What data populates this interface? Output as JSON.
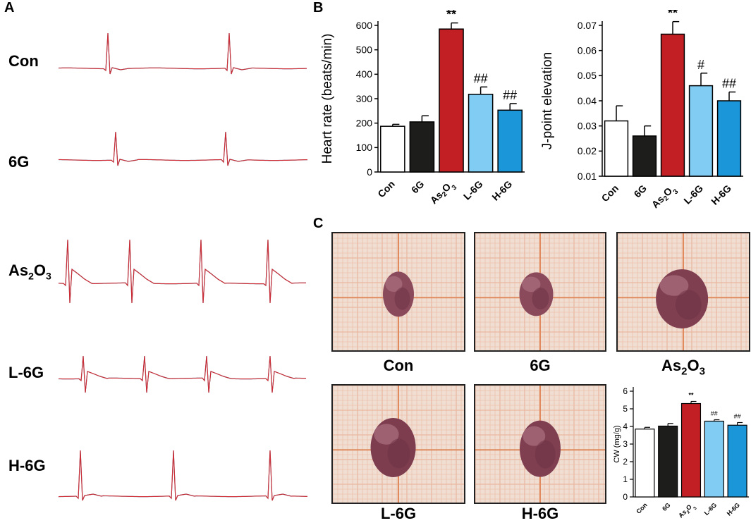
{
  "panels": {
    "a": "A",
    "b": "B",
    "c": "C"
  },
  "ecg": {
    "traces": [
      {
        "label": "Con",
        "label_sub": null
      },
      {
        "label": "6G",
        "label_sub": null
      },
      {
        "label": "As2O3",
        "label_parts": [
          "As",
          "2",
          "O",
          "3"
        ]
      },
      {
        "label": "L-6G",
        "label_sub": null
      },
      {
        "label": "H-6G",
        "label_sub": null
      }
    ],
    "colors": {
      "signal": "#e8262b",
      "baseline": "#4a4f6a"
    }
  },
  "chart_data": [
    {
      "type": "bar",
      "id": "heart-rate",
      "title": "",
      "xlabel": "",
      "ylabel": "Heart rate (beats/min)",
      "categories": [
        "Con",
        "6G",
        "As2O3",
        "L-6G",
        "H-6G"
      ],
      "category_parts": [
        [
          "Con"
        ],
        [
          "6G"
        ],
        [
          "As",
          "2",
          "O",
          "3"
        ],
        [
          "L-6G"
        ],
        [
          "H-6G"
        ]
      ],
      "values": [
        187,
        205,
        585,
        318,
        253
      ],
      "errors": [
        8,
        25,
        25,
        30,
        27
      ],
      "annotations": [
        "",
        "",
        "**",
        "##",
        "##"
      ],
      "colors": [
        "#ffffff",
        "#1d1d1b",
        "#c11f24",
        "#80ccf3",
        "#1b96d8"
      ],
      "ylim": [
        0,
        600
      ],
      "yticks": [
        "0",
        "100",
        "200",
        "300",
        "400",
        "500",
        "600"
      ]
    },
    {
      "type": "bar",
      "id": "j-point",
      "title": "",
      "xlabel": "",
      "ylabel": "J-point elevation",
      "categories": [
        "Con",
        "6G",
        "As2O3",
        "L-6G",
        "H-6G"
      ],
      "category_parts": [
        [
          "Con"
        ],
        [
          "6G"
        ],
        [
          "As",
          "2",
          "O",
          "3"
        ],
        [
          "L-6G"
        ],
        [
          "H-6G"
        ]
      ],
      "values": [
        0.032,
        0.026,
        0.0665,
        0.046,
        0.04
      ],
      "errors": [
        0.006,
        0.004,
        0.005,
        0.005,
        0.0035
      ],
      "annotations": [
        "",
        "",
        "**",
        "#",
        "##"
      ],
      "colors": [
        "#ffffff",
        "#1d1d1b",
        "#c11f24",
        "#80ccf3",
        "#1b96d8"
      ],
      "ylim": [
        0.01,
        0.07
      ],
      "yticks": [
        "0.01",
        "0.02",
        "0.03",
        "0.04",
        "0.05",
        "0.06",
        "0.07"
      ]
    },
    {
      "type": "bar",
      "id": "cw",
      "title": "",
      "xlabel": "",
      "ylabel": "CW (mg/g)",
      "categories": [
        "Con",
        "6G",
        "As2O3",
        "L-6G",
        "H-6G"
      ],
      "category_parts": [
        [
          "Con"
        ],
        [
          "6G"
        ],
        [
          "As",
          "2",
          "O",
          "3"
        ],
        [
          "L-6G"
        ],
        [
          "H-6G"
        ]
      ],
      "values": [
        3.85,
        4.02,
        5.3,
        4.3,
        4.07
      ],
      "errors": [
        0.1,
        0.15,
        0.12,
        0.08,
        0.15
      ],
      "annotations": [
        "",
        "",
        "**",
        "##",
        "##"
      ],
      "colors": [
        "#ffffff",
        "#1d1d1b",
        "#c11f24",
        "#80ccf3",
        "#1b96d8"
      ],
      "ylim": [
        0,
        6
      ],
      "yticks": [
        "0",
        "1",
        "2",
        "3",
        "4",
        "5",
        "6"
      ]
    }
  ],
  "photos": [
    {
      "label": "Con",
      "label_parts": null
    },
    {
      "label": "6G",
      "label_parts": null
    },
    {
      "label": "As2O3",
      "label_parts": [
        "As",
        "2",
        "O",
        "3"
      ]
    },
    {
      "label": "L-6G",
      "label_parts": null
    },
    {
      "label": "H-6G",
      "label_parts": null
    }
  ]
}
